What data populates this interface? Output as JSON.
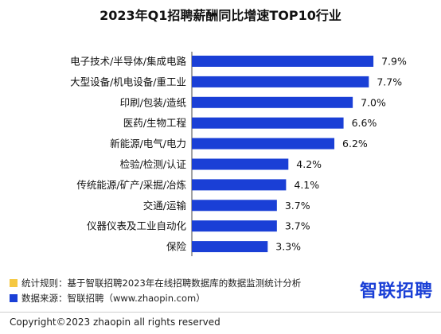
{
  "chart_data": {
    "type": "bar",
    "orientation": "horizontal",
    "title": "2023年Q1招聘薪酬同比增速TOP10行业",
    "categories": [
      "电子技术/半导体/集成电路",
      "大型设备/机电设备/重工业",
      "印刷/包装/造纸",
      "医药/生物工程",
      "新能源/电气/电力",
      "检验/检测/认证",
      "传统能源/矿产/采掘/冶炼",
      "交通/运输",
      "仪器仪表及工业自动化",
      "保险"
    ],
    "values": [
      7.9,
      7.7,
      7.0,
      6.6,
      6.2,
      4.2,
      4.1,
      3.7,
      3.7,
      3.3
    ],
    "value_labels": [
      "7.9%",
      "7.7%",
      "7.0%",
      "6.6%",
      "6.2%",
      "4.2%",
      "4.1%",
      "3.7%",
      "3.7%",
      "3.3%"
    ],
    "unit": "%",
    "xlim": [
      0,
      8
    ],
    "bar_color": "#1a3fd6",
    "grid": false
  },
  "notes": [
    {
      "text": "统计规则：基于智联招聘2023年在线招聘数据库的数据监测统计分析",
      "color": "#f5c842"
    },
    {
      "text": "数据来源：智联招聘（www.zhaopin.com）",
      "color": "#1a3fd6"
    }
  ],
  "logo": "智联招聘",
  "copyright": "Copyright©2023 zhaopin all rights reserved"
}
